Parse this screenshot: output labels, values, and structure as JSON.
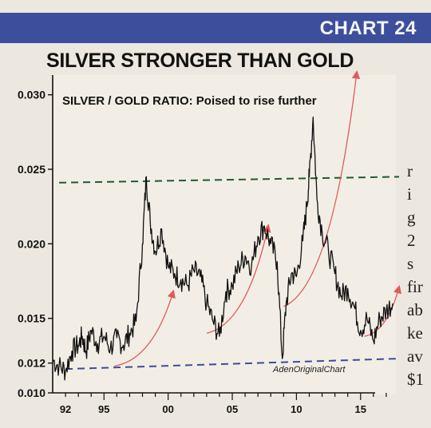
{
  "banner": {
    "label": "CHART 24"
  },
  "chart_data": {
    "type": "line",
    "title": "SILVER STRONGER THAN GOLD",
    "subtitle": "SILVER / GOLD RATIO:  Poised to rise further",
    "credit": "AdenOriginalChart",
    "xlabel": "",
    "ylabel": "",
    "ylim": [
      0.01,
      0.031
    ],
    "xlim": [
      1991,
      2018
    ],
    "y_ticks": [
      "0.030",
      "0.025",
      "0.020",
      "0.015",
      "0.012",
      "0.010"
    ],
    "y_tick_values": [
      0.03,
      0.025,
      0.02,
      0.015,
      0.012,
      0.01
    ],
    "x_ticks": [
      "92",
      "95",
      "00",
      "05",
      "10",
      "15"
    ],
    "x_tick_values": [
      1992,
      1995,
      2000,
      2005,
      2010,
      2015
    ],
    "series": [
      {
        "x": [
          1991.0,
          1991.5,
          1992.0,
          1992.5,
          1993.0,
          1993.3,
          1993.6,
          1994.0,
          1994.5,
          1995.0,
          1995.5,
          1996.0,
          1996.5,
          1997.0,
          1997.5,
          1998.0,
          1998.3,
          1998.6,
          1999.0,
          1999.5,
          2000.0,
          2000.5,
          2001.0,
          2001.5,
          2002.0,
          2002.5,
          2003.0,
          2003.5,
          2004.0,
          2004.5,
          2005.0,
          2005.5,
          2006.0,
          2006.5,
          2007.0,
          2007.5,
          2008.0,
          2008.5,
          2008.9,
          2009.2,
          2009.6,
          2010.0,
          2010.5,
          2010.8,
          2011.0,
          2011.3,
          2011.6,
          2012.0,
          2012.5,
          2013.0,
          2013.5,
          2014.0,
          2014.5,
          2015.0,
          2015.5,
          2016.0,
          2016.5,
          2017.0,
          2017.5
        ],
        "values": [
          0.0122,
          0.0118,
          0.0115,
          0.0128,
          0.0132,
          0.0138,
          0.0128,
          0.0142,
          0.0133,
          0.0138,
          0.013,
          0.0137,
          0.0132,
          0.014,
          0.0148,
          0.02,
          0.0245,
          0.0215,
          0.0195,
          0.021,
          0.0185,
          0.018,
          0.0176,
          0.0172,
          0.0182,
          0.0178,
          0.016,
          0.0148,
          0.0138,
          0.0168,
          0.0172,
          0.0185,
          0.0192,
          0.0185,
          0.0205,
          0.0212,
          0.02,
          0.0188,
          0.0123,
          0.016,
          0.018,
          0.0178,
          0.0202,
          0.0225,
          0.0245,
          0.0285,
          0.023,
          0.0208,
          0.0195,
          0.018,
          0.0165,
          0.017,
          0.0158,
          0.0142,
          0.015,
          0.0135,
          0.015,
          0.0155,
          0.016
        ]
      }
    ],
    "annotations": [
      {
        "type": "resistance",
        "color": "#1f5b2d",
        "x": [
          1991.5,
          2018
        ],
        "y": [
          0.0241,
          0.0245
        ]
      },
      {
        "type": "support",
        "color": "#3c4c9c",
        "x": [
          1992,
          2018
        ],
        "y": [
          0.0116,
          0.0123
        ]
      },
      {
        "type": "arrow",
        "color": "#e05a5a",
        "x": [
          1995.8,
          2000.4
        ],
        "y": [
          0.0118,
          0.0168
        ]
      },
      {
        "type": "arrow",
        "color": "#e05a5a",
        "x": [
          2003.0,
          2007.8
        ],
        "y": [
          0.014,
          0.0212
        ]
      },
      {
        "type": "arrow",
        "color": "#e05a5a",
        "x": [
          2009.0,
          2014.7
        ],
        "y": [
          0.0158,
          0.0315
        ]
      },
      {
        "type": "arrow",
        "color": "#e05a5a",
        "x": [
          2015.3,
          2018.0
        ],
        "y": [
          0.0138,
          0.0171
        ]
      }
    ],
    "grid": false,
    "legend": "none"
  },
  "sidebar": {
    "fragments": [
      "r",
      "i",
      "g",
      "2",
      "s",
      "fir",
      "ab",
      "ke",
      "av",
      "$1"
    ]
  }
}
